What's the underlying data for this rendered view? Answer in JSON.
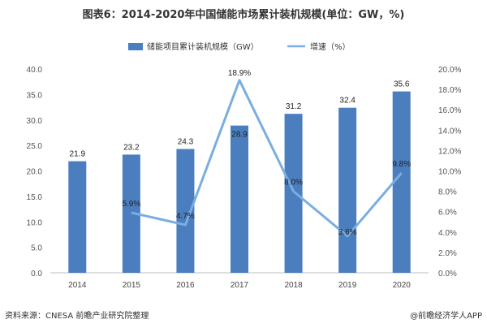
{
  "header": {
    "title": "图表6：2014-2020年中国储能市场累计装机规模(单位：GW，%)"
  },
  "footer": {
    "source": "资料来源：CNESA 前瞻产业研究院整理",
    "brand": "@前瞻经济学人APP"
  },
  "colors": {
    "bar": "#4a7ebf",
    "line": "#7aaee0",
    "axis": "#bfbfbf"
  },
  "chart_data": {
    "type": "bar",
    "categories": [
      "2014",
      "2015",
      "2016",
      "2017",
      "2018",
      "2019",
      "2020"
    ],
    "series": [
      {
        "name": "储能项目累计装机规模（GW）",
        "type": "bar",
        "axis": "left",
        "values": [
          21.9,
          23.2,
          24.3,
          28.9,
          31.2,
          32.4,
          35.6
        ],
        "labels": [
          "21.9",
          "23.2",
          "24.3",
          "28.9",
          "31.2",
          "32.4",
          "35.6"
        ]
      },
      {
        "name": "增速（%）",
        "type": "line",
        "axis": "right",
        "values": [
          null,
          5.9,
          4.7,
          18.9,
          8.0,
          3.6,
          9.8
        ],
        "labels": [
          "",
          "5.9%",
          "4.7%",
          "18.9%",
          "8.0%",
          "3.6%",
          "9.8%"
        ]
      }
    ],
    "left_axis": {
      "ylim": [
        0,
        40
      ],
      "ticks": [
        "0.0",
        "5.0",
        "10.0",
        "15.0",
        "20.0",
        "25.0",
        "30.0",
        "35.0",
        "40.0"
      ]
    },
    "right_axis": {
      "ylim": [
        0,
        20
      ],
      "ticks": [
        "0.0%",
        "2.0%",
        "4.0%",
        "6.0%",
        "8.0%",
        "10.0%",
        "12.0%",
        "14.0%",
        "16.0%",
        "18.0%",
        "20.0%"
      ]
    },
    "legend_position": "top-center",
    "grid": false
  }
}
